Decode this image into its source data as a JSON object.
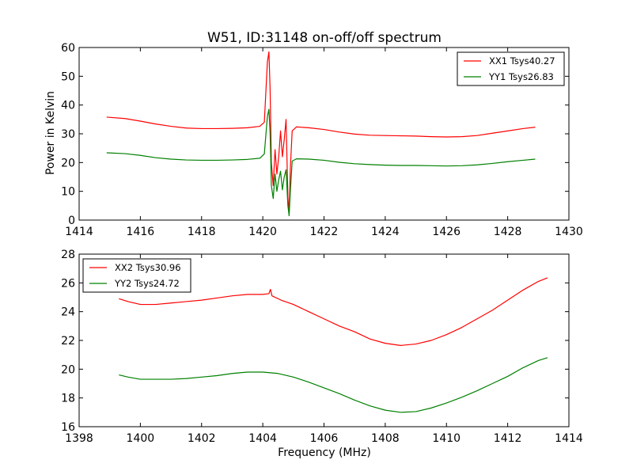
{
  "chart_data": [
    {
      "type": "line",
      "title": "W51, ID:31148 on-off/off spectrum",
      "xlabel": "",
      "ylabel": "Power in Kelvin",
      "xlim": [
        1414,
        1430
      ],
      "ylim": [
        0,
        60
      ],
      "xticks": [
        "1414",
        "1416",
        "1418",
        "1420",
        "1422",
        "1424",
        "1426",
        "1428",
        "1430"
      ],
      "yticks": [
        "0",
        "10",
        "20",
        "30",
        "40",
        "50",
        "60"
      ],
      "legend_position": "top-right",
      "series": [
        {
          "name": "XX1 Tsys40.27",
          "color": "#ff0000",
          "points": [
            [
              1414.9,
              35.8
            ],
            [
              1415.5,
              35.3
            ],
            [
              1416.0,
              34.4
            ],
            [
              1416.5,
              33.4
            ],
            [
              1417.0,
              32.6
            ],
            [
              1417.5,
              32.0
            ],
            [
              1418.0,
              31.8
            ],
            [
              1418.5,
              31.8
            ],
            [
              1419.0,
              31.9
            ],
            [
              1419.5,
              32.1
            ],
            [
              1419.9,
              32.6
            ],
            [
              1420.05,
              34.0
            ],
            [
              1420.15,
              55.0
            ],
            [
              1420.2,
              58.5
            ],
            [
              1420.24,
              45.0
            ],
            [
              1420.28,
              20.0
            ],
            [
              1420.34,
              12.0
            ],
            [
              1420.4,
              24.5
            ],
            [
              1420.46,
              16.0
            ],
            [
              1420.52,
              22.0
            ],
            [
              1420.58,
              31.0
            ],
            [
              1420.64,
              22.0
            ],
            [
              1420.7,
              28.0
            ],
            [
              1420.76,
              35.0
            ],
            [
              1420.82,
              8.0
            ],
            [
              1420.86,
              2.5
            ],
            [
              1420.9,
              18.0
            ],
            [
              1420.96,
              31.0
            ],
            [
              1421.1,
              32.4
            ],
            [
              1421.5,
              32.1
            ],
            [
              1422.0,
              31.5
            ],
            [
              1422.5,
              30.6
            ],
            [
              1423.0,
              29.9
            ],
            [
              1423.5,
              29.5
            ],
            [
              1424.0,
              29.4
            ],
            [
              1424.5,
              29.3
            ],
            [
              1425.0,
              29.2
            ],
            [
              1425.5,
              29.0
            ],
            [
              1426.0,
              28.9
            ],
            [
              1426.5,
              29.0
            ],
            [
              1427.0,
              29.4
            ],
            [
              1427.5,
              30.2
            ],
            [
              1428.0,
              31.0
            ],
            [
              1428.5,
              31.8
            ],
            [
              1428.9,
              32.3
            ]
          ]
        },
        {
          "name": "YY1 Tsys26.83",
          "color": "#008000",
          "points": [
            [
              1414.9,
              23.4
            ],
            [
              1415.5,
              23.1
            ],
            [
              1416.0,
              22.5
            ],
            [
              1416.5,
              21.7
            ],
            [
              1417.0,
              21.2
            ],
            [
              1417.5,
              20.9
            ],
            [
              1418.0,
              20.8
            ],
            [
              1418.5,
              20.8
            ],
            [
              1419.0,
              20.9
            ],
            [
              1419.5,
              21.1
            ],
            [
              1419.9,
              21.5
            ],
            [
              1420.05,
              23.0
            ],
            [
              1420.15,
              36.0
            ],
            [
              1420.2,
              38.5
            ],
            [
              1420.24,
              30.0
            ],
            [
              1420.28,
              12.0
            ],
            [
              1420.34,
              7.5
            ],
            [
              1420.4,
              16.0
            ],
            [
              1420.46,
              10.0
            ],
            [
              1420.52,
              14.0
            ],
            [
              1420.58,
              17.0
            ],
            [
              1420.64,
              10.5
            ],
            [
              1420.7,
              15.0
            ],
            [
              1420.76,
              17.5
            ],
            [
              1420.82,
              5.0
            ],
            [
              1420.86,
              1.5
            ],
            [
              1420.9,
              10.0
            ],
            [
              1420.96,
              20.5
            ],
            [
              1421.1,
              21.3
            ],
            [
              1421.5,
              21.2
            ],
            [
              1422.0,
              20.8
            ],
            [
              1422.5,
              20.1
            ],
            [
              1423.0,
              19.6
            ],
            [
              1423.5,
              19.3
            ],
            [
              1424.0,
              19.1
            ],
            [
              1424.5,
              19.0
            ],
            [
              1425.0,
              19.0
            ],
            [
              1425.5,
              18.9
            ],
            [
              1426.0,
              18.8
            ],
            [
              1426.5,
              18.9
            ],
            [
              1427.0,
              19.2
            ],
            [
              1427.5,
              19.7
            ],
            [
              1428.0,
              20.3
            ],
            [
              1428.5,
              20.8
            ],
            [
              1428.9,
              21.2
            ]
          ]
        }
      ]
    },
    {
      "type": "line",
      "title": "",
      "xlabel": "Frequency (MHz)",
      "ylabel": "",
      "xlim": [
        1398,
        1414
      ],
      "ylim": [
        16,
        28
      ],
      "xticks": [
        "1398",
        "1400",
        "1402",
        "1404",
        "1406",
        "1408",
        "1410",
        "1412",
        "1414"
      ],
      "yticks": [
        "16",
        "18",
        "20",
        "22",
        "24",
        "26",
        "28"
      ],
      "legend_position": "top-left",
      "series": [
        {
          "name": "XX2 Tsys30.96",
          "color": "#ff0000",
          "points": [
            [
              1399.3,
              24.9
            ],
            [
              1399.6,
              24.7
            ],
            [
              1400.0,
              24.5
            ],
            [
              1400.5,
              24.5
            ],
            [
              1401.0,
              24.6
            ],
            [
              1401.5,
              24.7
            ],
            [
              1402.0,
              24.8
            ],
            [
              1402.5,
              24.95
            ],
            [
              1403.0,
              25.1
            ],
            [
              1403.5,
              25.2
            ],
            [
              1404.0,
              25.2
            ],
            [
              1404.2,
              25.25
            ],
            [
              1404.25,
              25.55
            ],
            [
              1404.3,
              25.1
            ],
            [
              1404.6,
              24.8
            ],
            [
              1405.0,
              24.5
            ],
            [
              1405.5,
              24.0
            ],
            [
              1406.0,
              23.5
            ],
            [
              1406.5,
              23.0
            ],
            [
              1407.0,
              22.6
            ],
            [
              1407.5,
              22.1
            ],
            [
              1408.0,
              21.8
            ],
            [
              1408.5,
              21.65
            ],
            [
              1409.0,
              21.75
            ],
            [
              1409.5,
              22.0
            ],
            [
              1410.0,
              22.4
            ],
            [
              1410.5,
              22.9
            ],
            [
              1411.0,
              23.5
            ],
            [
              1411.5,
              24.1
            ],
            [
              1412.0,
              24.8
            ],
            [
              1412.5,
              25.5
            ],
            [
              1413.0,
              26.1
            ],
            [
              1413.3,
              26.35
            ]
          ]
        },
        {
          "name": "YY2 Tsys24.72",
          "color": "#008000",
          "points": [
            [
              1399.3,
              19.6
            ],
            [
              1399.6,
              19.45
            ],
            [
              1400.0,
              19.3
            ],
            [
              1400.5,
              19.3
            ],
            [
              1401.0,
              19.3
            ],
            [
              1401.5,
              19.35
            ],
            [
              1402.0,
              19.45
            ],
            [
              1402.5,
              19.55
            ],
            [
              1403.0,
              19.7
            ],
            [
              1403.5,
              19.8
            ],
            [
              1404.0,
              19.8
            ],
            [
              1404.5,
              19.7
            ],
            [
              1405.0,
              19.45
            ],
            [
              1405.5,
              19.1
            ],
            [
              1406.0,
              18.7
            ],
            [
              1406.5,
              18.3
            ],
            [
              1407.0,
              17.85
            ],
            [
              1407.5,
              17.45
            ],
            [
              1408.0,
              17.15
            ],
            [
              1408.5,
              17.0
            ],
            [
              1409.0,
              17.05
            ],
            [
              1409.5,
              17.3
            ],
            [
              1410.0,
              17.65
            ],
            [
              1410.5,
              18.05
            ],
            [
              1411.0,
              18.5
            ],
            [
              1411.5,
              19.0
            ],
            [
              1412.0,
              19.5
            ],
            [
              1412.5,
              20.1
            ],
            [
              1413.0,
              20.6
            ],
            [
              1413.3,
              20.8
            ]
          ]
        }
      ]
    }
  ]
}
